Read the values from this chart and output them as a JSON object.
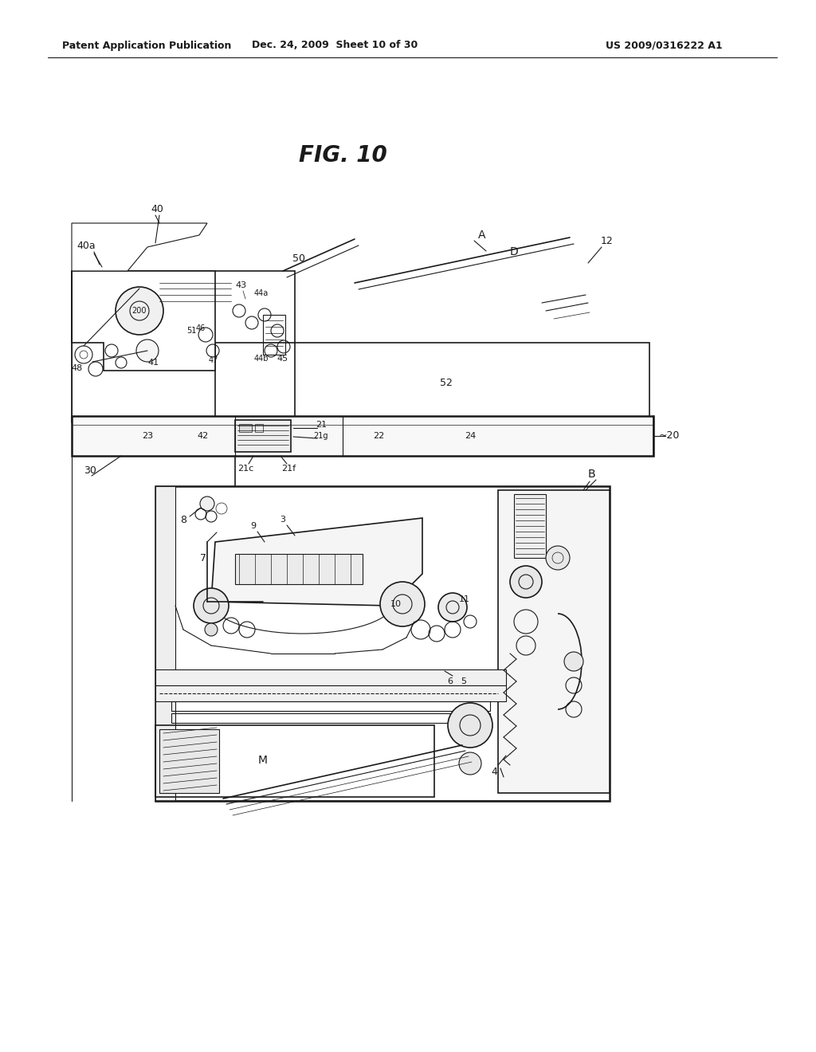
{
  "title": "FIG. 10",
  "header_left": "Patent Application Publication",
  "header_center": "Dec. 24, 2009  Sheet 10 of 30",
  "header_right": "US 2009/0316222 A1",
  "bg_color": "#ffffff",
  "ink_color": "#1a1a1a",
  "fig_width": 10.24,
  "fig_height": 13.2,
  "dpi": 100
}
